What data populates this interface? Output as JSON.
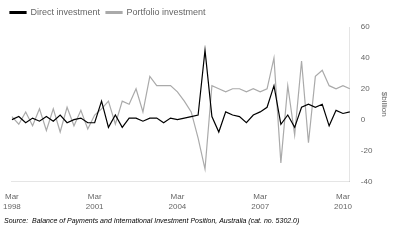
{
  "chart_data": {
    "type": "line",
    "ylabel": "$billion",
    "annotations": [
      "Source:  Balance of Payments and International Investment Position, Australia (cat. no. 5302.0)"
    ],
    "categories": [
      "Mar\n1998",
      null,
      null,
      null,
      null,
      null,
      null,
      null,
      null,
      null,
      null,
      null,
      "Mar\n2001",
      null,
      null,
      null,
      null,
      null,
      null,
      null,
      null,
      null,
      null,
      null,
      "Mar\n2004",
      null,
      null,
      null,
      null,
      null,
      null,
      null,
      null,
      null,
      null,
      null,
      "Mar\n2007",
      null,
      null,
      null,
      null,
      null,
      null,
      null,
      null,
      null,
      null,
      null,
      "Mar\n2010",
      null
    ],
    "series": [
      {
        "name": "Direct investment",
        "color": "#000000",
        "values": [
          0,
          2,
          -2,
          1,
          -1,
          2,
          -1,
          3,
          -2,
          0,
          1,
          -2,
          -2,
          12,
          -5,
          3,
          -5,
          1,
          1,
          -1,
          1,
          1,
          -2,
          1,
          0,
          1,
          2,
          3,
          45,
          2,
          -8,
          5,
          3,
          2,
          -2,
          3,
          5,
          8,
          22,
          -3,
          3,
          -5,
          8,
          10,
          8,
          10,
          -4,
          6,
          4,
          5
        ]
      },
      {
        "name": "Portfolio investment",
        "color": "#aaaaaa",
        "values": [
          2,
          -3,
          5,
          -4,
          7,
          -7,
          7,
          -8,
          8,
          -4,
          6,
          -6,
          3,
          7,
          12,
          -3,
          12,
          10,
          20,
          5,
          28,
          22,
          22,
          22,
          18,
          12,
          5,
          -12,
          -32,
          22,
          20,
          18,
          20,
          20,
          18,
          20,
          18,
          20,
          40,
          -28,
          22,
          -10,
          38,
          -15,
          28,
          32,
          22,
          20,
          22,
          20
        ]
      }
    ],
    "ylim": [
      -40,
      60
    ],
    "yticks": [
      -40,
      -20,
      0,
      20,
      40,
      60
    ],
    "grid": false,
    "legend": "upper left"
  }
}
